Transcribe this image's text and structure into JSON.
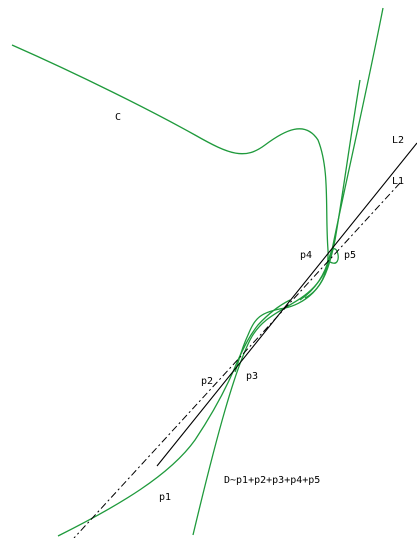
{
  "labels": {
    "curve": "C",
    "line2": "L2",
    "line1": "L1",
    "p1": "p1",
    "p2": "p2",
    "p3": "p3",
    "p4": "p4",
    "p5": "p5",
    "divisor": "D~p1+p2+p3+p4+p5"
  },
  "colors": {
    "curve": "#1f9a3c",
    "lines": "#000000"
  }
}
